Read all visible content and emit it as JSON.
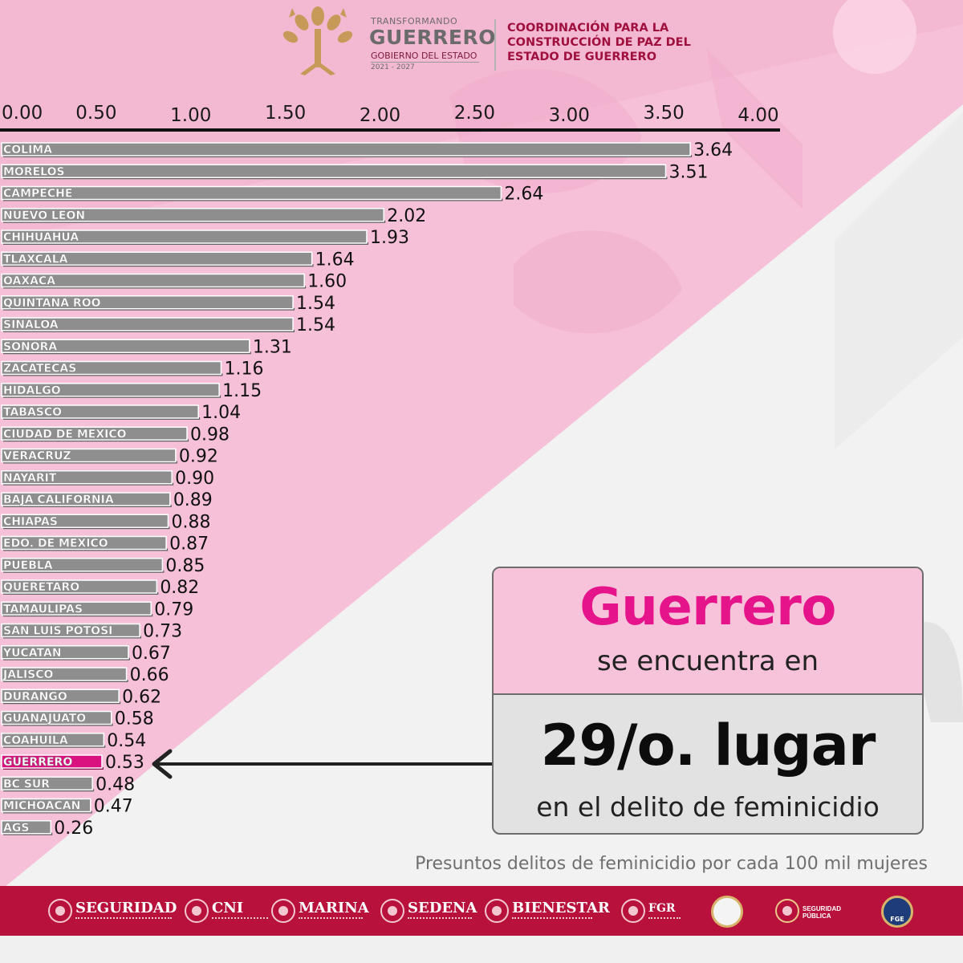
{
  "header": {
    "brand_small": "TRANSFORMANDO",
    "brand_big": "GUERRERO",
    "brand_sub": "GOBIERNO DEL ESTADO",
    "brand_years": "2021 - 2027",
    "coordination": "COORDINACIÓN PARA LA CONSTRUCCIÓN DE PAZ DEL ESTADO DE GUERRERO",
    "logo_icon": "guerrero-tree-logo-icon"
  },
  "chart_data": {
    "type": "bar",
    "orientation": "horizontal",
    "xlim": [
      0,
      4
    ],
    "x_ticks": [
      "0.00",
      "0.50",
      "1.00",
      "1.50",
      "2.00",
      "2.50",
      "3.00",
      "3.50",
      "4.00"
    ],
    "x_tick_values": [
      0,
      0.5,
      1,
      1.5,
      2,
      2.5,
      3,
      3.5,
      4
    ],
    "categories": [
      "COLIMA",
      "MORELOS",
      "CAMPECHE",
      "NUEVO LEON",
      "CHIHUAHUA",
      "TLAXCALA",
      "OAXACA",
      "QUINTANA ROO",
      "SINALOA",
      "SONORA",
      "ZACATECAS",
      "HIDALGO",
      "TABASCO",
      "CIUDAD DE MEXICO",
      "VERACRUZ",
      "NAYARIT",
      "BAJA CALIFORNIA",
      "CHIAPAS",
      "EDO. DE MEXICO",
      "PUEBLA",
      "QUERETARO",
      "TAMAULIPAS",
      "SAN LUIS POTOSI",
      "YUCATAN",
      "JALISCO",
      "DURANGO",
      "GUANAJUATO",
      "COAHUILA",
      "GUERRERO",
      "BC SUR",
      "MICHOACAN",
      "AGS"
    ],
    "values": [
      3.64,
      3.51,
      2.64,
      2.02,
      1.93,
      1.64,
      1.6,
      1.54,
      1.54,
      1.31,
      1.16,
      1.15,
      1.04,
      0.98,
      0.92,
      0.9,
      0.89,
      0.88,
      0.87,
      0.85,
      0.82,
      0.79,
      0.73,
      0.67,
      0.66,
      0.62,
      0.58,
      0.54,
      0.53,
      0.48,
      0.47,
      0.26
    ],
    "value_labels": [
      "3.64",
      "3.51",
      "2.64",
      "2.02",
      "1.93",
      "1.64",
      "1.60",
      "1.54",
      "1.54",
      "1.31",
      "1.16",
      "1.15",
      "1.04",
      "0.98",
      "0.92",
      "0.90",
      "0.89",
      "0.88",
      "0.87",
      "0.85",
      "0.82",
      "0.79",
      "0.73",
      "0.67",
      "0.66",
      "0.62",
      "0.58",
      "0.54",
      "0.53",
      "0.48",
      "0.47",
      "0.26"
    ],
    "highlight": "GUERRERO",
    "colors": {
      "bar": "#8e8e8e",
      "highlight": "#d9127f",
      "axis": "#111111"
    },
    "grid": false
  },
  "callout": {
    "name": "Guerrero",
    "line1": "se encuentra en",
    "rank": "29/o. lugar",
    "line2": "en el delito de feminicidio"
  },
  "footnote": "Presuntos delitos de feminicidio por cada 100 mil mujeres",
  "footer": {
    "orgs": [
      "SEGURIDAD",
      "CNI",
      "MARINA",
      "SEDENA",
      "BIENESTAR",
      "FGR"
    ],
    "seals": [
      "guard-eagle-seal-icon",
      "seguridad-publica-logo-icon",
      "fge-seal-icon"
    ],
    "seguridad_publica_label": "SEGURIDAD PÚBLICA",
    "fge_label": "FGE"
  },
  "colors": {
    "pink": "#f5bfd6",
    "magenta": "#e6148a",
    "footer_red": "#b8123c",
    "brand_wine": "#a0103e"
  }
}
